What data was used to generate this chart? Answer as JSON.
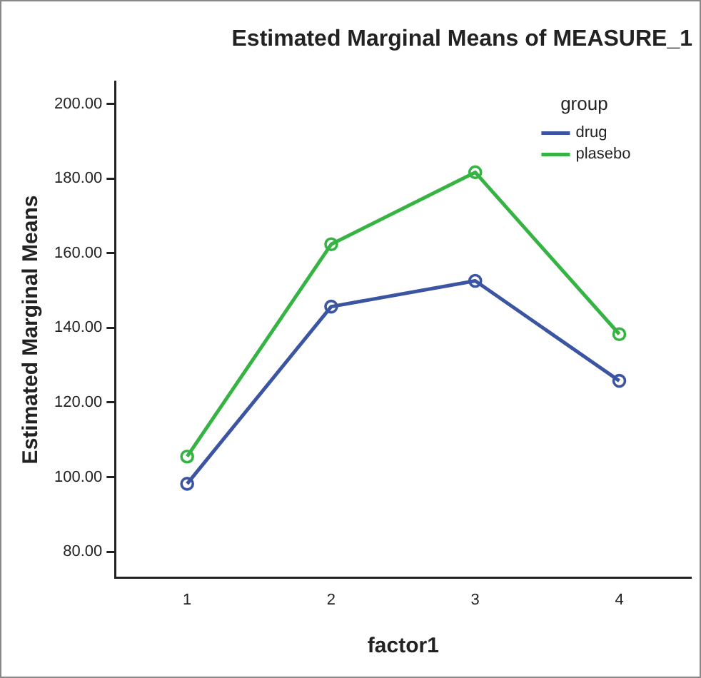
{
  "chart_data": {
    "type": "line",
    "title": "Estimated Marginal Means of MEASURE_1",
    "xlabel": "factor1",
    "ylabel": "Estimated Marginal Means",
    "legend_title": "group",
    "categories": [
      "1",
      "2",
      "3",
      "4"
    ],
    "series": [
      {
        "name": "drug",
        "color": "#3b55a3",
        "values": [
          98.2,
          145.7,
          152.6,
          125.8
        ]
      },
      {
        "name": "plasebo",
        "color": "#36b443",
        "values": [
          105.5,
          162.4,
          181.7,
          138.3
        ]
      }
    ],
    "ylim": [
      73,
      206
    ],
    "yticks": [
      {
        "value": 80,
        "label": "80.00"
      },
      {
        "value": 100,
        "label": "100.00"
      },
      {
        "value": 120,
        "label": "120.00"
      },
      {
        "value": 140,
        "label": "140.00"
      },
      {
        "value": 160,
        "label": "160.00"
      },
      {
        "value": 180,
        "label": "180.00"
      },
      {
        "value": 200,
        "label": "200.00"
      }
    ],
    "grid": false,
    "legend": "top right",
    "marker": "circle",
    "line_style": "solid"
  }
}
